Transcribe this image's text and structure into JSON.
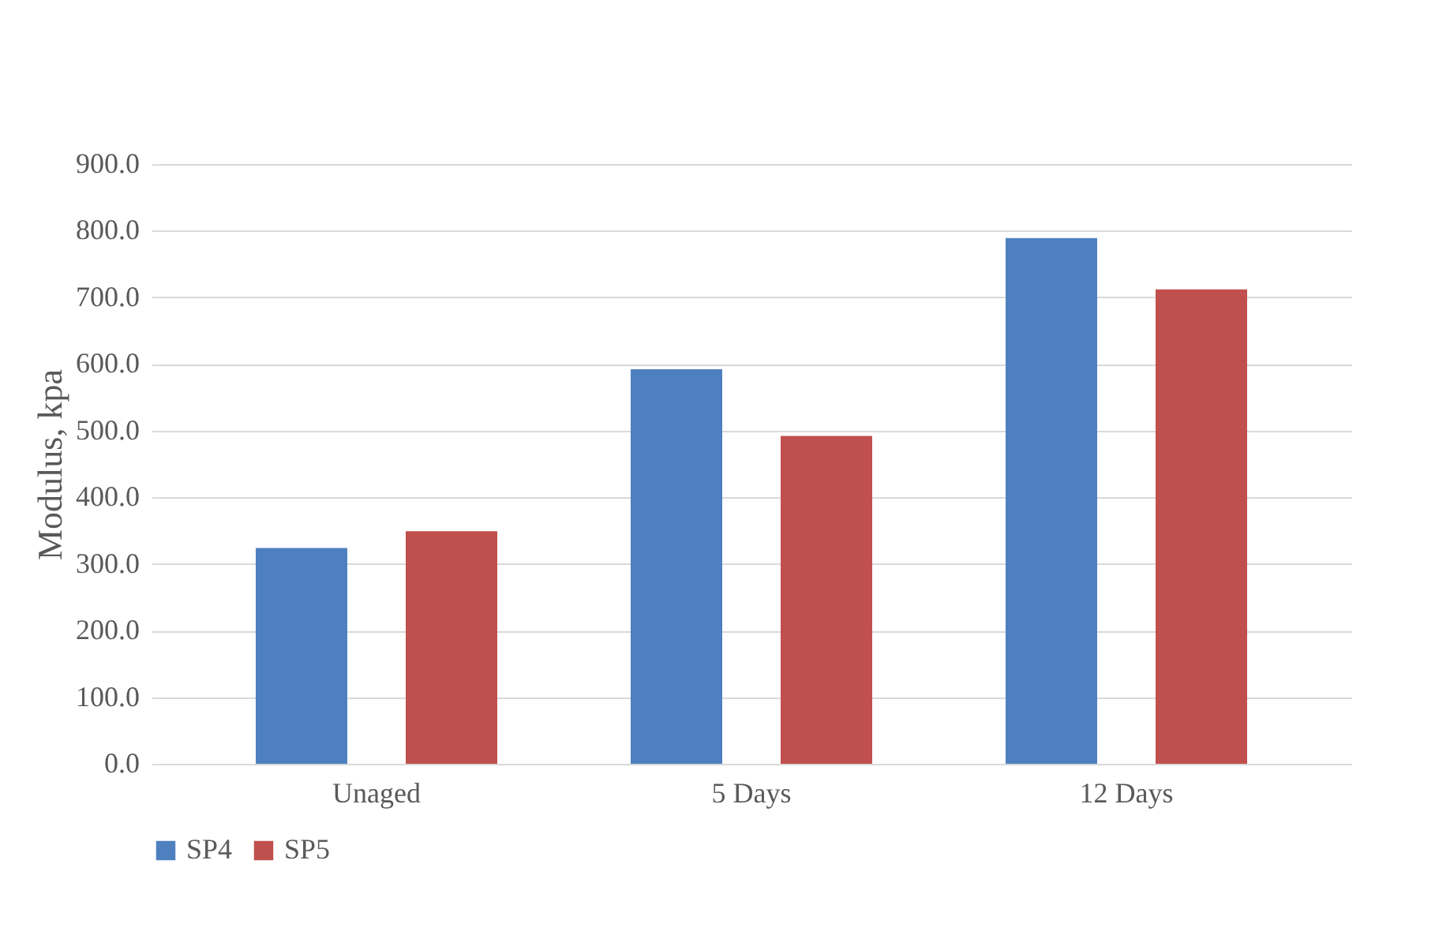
{
  "chart_data": {
    "type": "bar",
    "ylabel": "Modulus, kpa",
    "categories": [
      "Unaged",
      "5 Days",
      "12 Days"
    ],
    "series": [
      {
        "name": "SP4",
        "color": "#4e80c0",
        "values": [
          324,
          592,
          789
        ]
      },
      {
        "name": "SP5",
        "color": "#c0504d",
        "values": [
          349,
          492,
          712
        ]
      }
    ],
    "ylim": [
      0,
      900
    ],
    "yticks": [
      {
        "value": 0,
        "label": "0.0"
      },
      {
        "value": 100,
        "label": "100.0"
      },
      {
        "value": 200,
        "label": "200.0"
      },
      {
        "value": 300,
        "label": "300.0"
      },
      {
        "value": 400,
        "label": "400.0"
      },
      {
        "value": 500,
        "label": "500.0"
      },
      {
        "value": 600,
        "label": "600.0"
      },
      {
        "value": 700,
        "label": "700.0"
      },
      {
        "value": 800,
        "label": "800.0"
      },
      {
        "value": 900,
        "label": "900.0"
      }
    ],
    "grid": "y",
    "legend": "bottom"
  }
}
